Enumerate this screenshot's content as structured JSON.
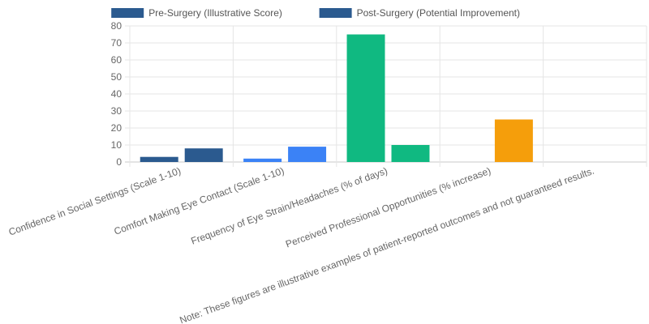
{
  "chart_data": {
    "type": "bar",
    "categories": [
      "Confidence in Social Settings (Scale 1-10)",
      "Comfort Making Eye Contact (Scale 1-10)",
      "Frequency of Eye Strain/Headaches (% of days)",
      "Perceived Professional Opportunities (% increase)",
      "Note: These figures are illustrative examples of patient-reported outcomes and not guaranteed results."
    ],
    "series": [
      {
        "name": "Pre-Surgery (Illustrative Score)",
        "values": [
          3,
          2,
          75,
          0,
          0
        ]
      },
      {
        "name": "Post-Surgery (Potential Improvement)",
        "values": [
          8,
          9,
          10,
          25,
          0
        ]
      }
    ],
    "bar_colors": [
      [
        "#2b5a8f",
        "#2b5a8f"
      ],
      [
        "#3b82f6",
        "#3b82f6"
      ],
      [
        "#10b981",
        "#10b981"
      ],
      [
        "#f59e0b",
        "#f59e0b"
      ],
      [
        "#9ca3af",
        "#9ca3af"
      ]
    ],
    "legend_color": "#2b5a8f",
    "legend_position": "top",
    "ylim": [
      0,
      80
    ],
    "yticks": [
      "0",
      "10",
      "20",
      "30",
      "40",
      "50",
      "60",
      "70",
      "80"
    ],
    "grid": true
  }
}
